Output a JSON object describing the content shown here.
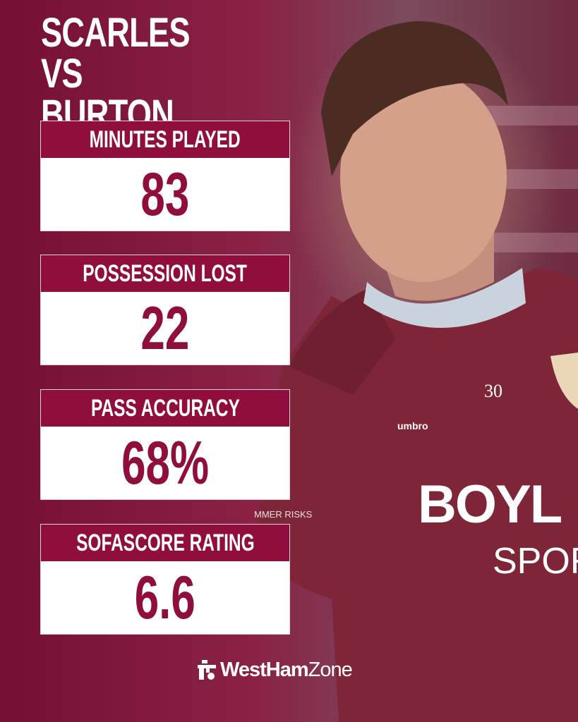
{
  "title": {
    "line1": "SCARLES VS",
    "line2": "BURTON"
  },
  "stats": [
    {
      "label": "MINUTES PLAYED",
      "value": "83"
    },
    {
      "label": "POSSESSION LOST",
      "value": "22"
    },
    {
      "label": "PASS ACCURACY",
      "value": "68%"
    },
    {
      "label": "SOFASCORE RATING",
      "value": "6.6"
    }
  ],
  "brand": {
    "bold": "WestHam",
    "light": "Zone",
    "icon": "westhamzone-logo-icon"
  },
  "photo_lettering": {
    "number": "30",
    "kit": "umbro",
    "sponsor1": "BOYL",
    "sponsor2": "SPOR",
    "sleeve": "MMER RISKS"
  },
  "colors": {
    "primary": "#8f0e3d",
    "background": "#7d1439",
    "text": "#ffffff"
  }
}
